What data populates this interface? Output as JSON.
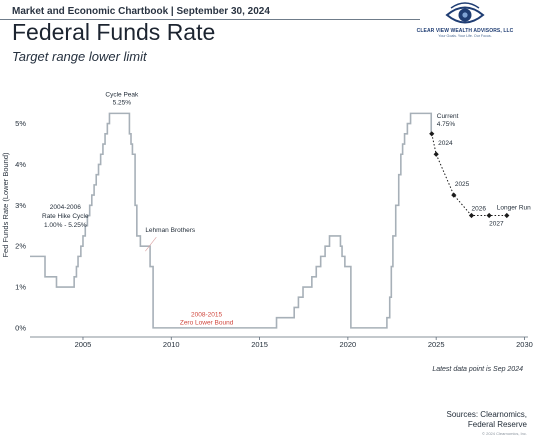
{
  "header": {
    "chartbook_line": "Market and Economic Chartbook | September 30, 2024",
    "title": "Federal Funds Rate",
    "subtitle": "Target range lower limit",
    "logo_text": "CLEAR VIEW WEALTH ADVISORS, LLC",
    "logo_tagline": "Your Goals. Your Life. Our Focus."
  },
  "colors": {
    "line": "#a7b0b8",
    "projection_line": "#1b1b1b",
    "marker": "#1b1b1b",
    "axis": "#5f6b78",
    "lower_bound_label": "#d0473d",
    "text": "#1f2a36",
    "logo_eye": "#1f3d73"
  },
  "chart_data": {
    "type": "line",
    "xlabel": "",
    "ylabel": "Fed Funds Rate (Lower Bound)",
    "xlim": [
      2002.0,
      2030.2
    ],
    "ylim": [
      -0.15,
      5.7
    ],
    "x_ticks": [
      2005,
      2010,
      2015,
      2020,
      2025,
      2030
    ],
    "y_ticks": [
      0,
      1,
      2,
      3,
      4,
      5
    ],
    "y_tick_labels": [
      "0%",
      "1%",
      "2%",
      "3%",
      "4%",
      "5%"
    ],
    "grid": false,
    "legend": "none",
    "series": [
      {
        "style": "step",
        "x": [
          2002.0,
          2002.85,
          2003.5,
          2004.5,
          2004.63,
          2004.72,
          2004.88,
          2005.0,
          2005.13,
          2005.25,
          2005.38,
          2005.5,
          2005.63,
          2005.75,
          2005.88,
          2006.0,
          2006.13,
          2006.25,
          2006.38,
          2006.5,
          2007.63,
          2007.72,
          2007.8,
          2007.95,
          2008.05,
          2008.25,
          2008.8,
          2008.97,
          2015.96,
          2016.96,
          2017.2,
          2017.46,
          2017.96,
          2018.21,
          2018.46,
          2018.71,
          2018.96,
          2019.58,
          2019.67,
          2019.83,
          2020.17,
          2020.21,
          2022.21,
          2022.37,
          2022.46,
          2022.55,
          2022.71,
          2022.88,
          2023.0,
          2023.1,
          2023.21,
          2023.37,
          2023.55,
          2024.72,
          2024.75
        ],
        "y": [
          1.75,
          1.25,
          1.0,
          1.25,
          1.5,
          1.75,
          2.0,
          2.25,
          2.5,
          2.75,
          3.0,
          3.25,
          3.5,
          3.75,
          4.0,
          4.25,
          4.5,
          4.75,
          5.0,
          5.25,
          4.75,
          4.5,
          4.25,
          3.0,
          2.25,
          2.0,
          1.5,
          0.0,
          0.25,
          0.5,
          0.75,
          1.0,
          1.25,
          1.5,
          1.75,
          2.0,
          2.25,
          2.0,
          1.75,
          1.5,
          0.0,
          0.0,
          0.25,
          0.75,
          1.5,
          2.25,
          3.0,
          3.75,
          4.25,
          4.5,
          4.75,
          5.0,
          5.25,
          4.75,
          4.75
        ]
      },
      {
        "style": "dotted",
        "x": [
          2024.75,
          2025.0,
          2026.0,
          2027.0,
          2028.0,
          2029.0
        ],
        "y": [
          4.75,
          4.25,
          3.25,
          2.75,
          2.75,
          2.75
        ],
        "marker_points": [
          {
            "label": "Current 4.75%",
            "x": 2024.75,
            "y": 4.75
          },
          {
            "label": "2024",
            "x": 2025.0,
            "y": 4.25
          },
          {
            "label": "2025",
            "x": 2026.0,
            "y": 3.25
          },
          {
            "label": "2026",
            "x": 2027.0,
            "y": 2.75
          },
          {
            "label": "2027",
            "x": 2028.0,
            "y": 2.75
          },
          {
            "label": "Longer Run",
            "x": 2029.0,
            "y": 2.75
          }
        ]
      }
    ],
    "annotations": [
      {
        "key": "cycle_peak",
        "lines": [
          "Cycle Peak",
          "5.25%"
        ],
        "x": 2007.2,
        "y": 5.25
      },
      {
        "key": "hike_cycle",
        "lines": [
          "2004-2006",
          "Rate Hike Cycle",
          "1.00% - 5.25%"
        ],
        "x": 2004.0,
        "y": 3.1
      },
      {
        "key": "lehman",
        "lines": [
          "Lehman Brothers"
        ],
        "x": 2008.7,
        "y": 2.0
      },
      {
        "key": "zero_lower_bound",
        "lines": [
          "2008-2015",
          "Zero Lower Bound"
        ],
        "x": 2012.0,
        "y": 0.25
      },
      {
        "key": "current",
        "lines": [
          "Current",
          "4.75%"
        ],
        "x": 2024.75,
        "y": 4.75
      },
      {
        "key": "p2024",
        "lines": [
          "2024"
        ],
        "x": 2025.0,
        "y": 4.25
      },
      {
        "key": "p2025",
        "lines": [
          "2025"
        ],
        "x": 2026.0,
        "y": 3.25
      },
      {
        "key": "p2026",
        "lines": [
          "2026"
        ],
        "x": 2027.0,
        "y": 2.75
      },
      {
        "key": "p2027",
        "lines": [
          "2027"
        ],
        "x": 2028.0,
        "y": 2.75
      },
      {
        "key": "longer_run",
        "lines": [
          "Longer Run"
        ],
        "x": 2029.0,
        "y": 2.75
      }
    ]
  },
  "footer": {
    "latest_note": "Latest data point is Sep 2024",
    "sources_line1": "Sources: Clearnomics,",
    "sources_line2": "Federal Reserve",
    "copyright": "© 2024 Clearnomics, Inc."
  }
}
